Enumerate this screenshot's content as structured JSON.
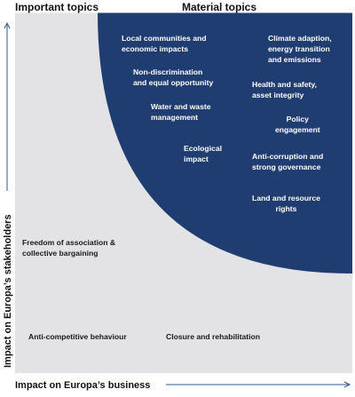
{
  "header": {
    "left_label": "Important topics",
    "right_label": "Material topics"
  },
  "axes": {
    "y_label": "Impact on Europa’s stakeholders",
    "x_label": "Impact on Europa’s business"
  },
  "colors": {
    "material_region": "#1f3d70",
    "background_region": "#e3e3e6",
    "arrow": "#34578f"
  },
  "material_topics": [
    {
      "line1": "Local communities and",
      "line2": "economic impacts"
    },
    {
      "line1": "Non-discrimination",
      "line2": "and equal opportunity"
    },
    {
      "line1": "Water and waste",
      "line2": "management"
    },
    {
      "line1": "Ecological",
      "line2": "impact"
    },
    {
      "line1": "Climate adaption,",
      "line2": "energy transition",
      "line3": "and emissions"
    },
    {
      "line1": "Health and safety,",
      "line2": "asset integrity"
    },
    {
      "line1": "Policy",
      "line2": "engagement"
    },
    {
      "line1": "Anti-corruption and",
      "line2": "strong governance"
    },
    {
      "line1": "Land and resource",
      "line2": "rights"
    }
  ],
  "important_topics": [
    {
      "line1": "Freedom of association &",
      "line2": "collective bargaining"
    },
    {
      "line1": "Anti-competitive behaviour"
    },
    {
      "line1": "Closure and rehabilitation"
    }
  ]
}
